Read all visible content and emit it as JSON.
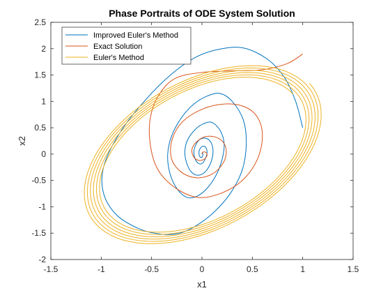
{
  "chart_data": {
    "type": "line",
    "title": "Phase Portraits of ODE System Solution",
    "xlabel": "x1",
    "ylabel": "x2",
    "xlim": [
      -1.5,
      1.5
    ],
    "ylim": [
      -2,
      2.5
    ],
    "xticks": [
      -1.5,
      -1,
      -0.5,
      0,
      0.5,
      1,
      1.5
    ],
    "yticks": [
      -2,
      -1.5,
      -1,
      -0.5,
      0,
      0.5,
      1,
      1.5,
      2,
      2.5
    ],
    "xtick_labels": [
      "-1.5",
      "-1",
      "-0.5",
      "0",
      "0.5",
      "1",
      "1.5"
    ],
    "ytick_labels": [
      "-2",
      "-1.5",
      "-1",
      "-0.5",
      "0",
      "0.5",
      "1",
      "1.5",
      "2",
      "2.5"
    ],
    "grid": false,
    "legend_position": "top-left",
    "series": [
      {
        "name": "Improved Euler's Method",
        "color": "#0072BD",
        "points": [
          [
            1.0,
            0.5
          ],
          [
            0.93,
            1.0
          ],
          [
            0.82,
            1.45
          ],
          [
            0.65,
            1.8
          ],
          [
            0.42,
            2.01
          ],
          [
            0.2,
            2.0
          ],
          [
            -0.05,
            1.85
          ],
          [
            -0.3,
            1.52
          ],
          [
            -0.55,
            1.05
          ],
          [
            -0.8,
            0.45
          ],
          [
            -0.97,
            -0.2
          ],
          [
            -0.98,
            -0.72
          ],
          [
            -0.85,
            -1.15
          ],
          [
            -0.62,
            -1.42
          ],
          [
            -0.4,
            -1.52
          ],
          [
            -0.22,
            -1.5
          ],
          [
            -0.05,
            -1.35
          ],
          [
            0.12,
            -1.1
          ],
          [
            0.28,
            -0.75
          ],
          [
            0.4,
            -0.3
          ],
          [
            0.44,
            0.2
          ],
          [
            0.41,
            0.65
          ],
          [
            0.3,
            1.0
          ],
          [
            0.18,
            1.15
          ],
          [
            0.05,
            1.1
          ],
          [
            -0.08,
            0.95
          ],
          [
            -0.2,
            0.7
          ],
          [
            -0.3,
            0.35
          ],
          [
            -0.34,
            0.0
          ],
          [
            -0.32,
            -0.35
          ],
          [
            -0.25,
            -0.65
          ],
          [
            -0.15,
            -0.82
          ],
          [
            -0.05,
            -0.8
          ],
          [
            0.05,
            -0.65
          ],
          [
            0.14,
            -0.4
          ],
          [
            0.2,
            -0.1
          ],
          [
            0.22,
            0.2
          ],
          [
            0.18,
            0.45
          ],
          [
            0.1,
            0.6
          ],
          [
            0.02,
            0.58
          ],
          [
            -0.06,
            0.48
          ],
          [
            -0.14,
            0.28
          ],
          [
            -0.17,
            0.05
          ],
          [
            -0.15,
            -0.18
          ],
          [
            -0.1,
            -0.35
          ],
          [
            -0.03,
            -0.4
          ],
          [
            0.04,
            -0.32
          ],
          [
            0.09,
            -0.15
          ],
          [
            0.11,
            0.05
          ],
          [
            0.09,
            0.22
          ],
          [
            0.04,
            0.3
          ],
          [
            -0.02,
            0.28
          ],
          [
            -0.06,
            0.18
          ],
          [
            -0.08,
            0.05
          ],
          [
            -0.07,
            -0.08
          ],
          [
            -0.04,
            -0.17
          ],
          [
            0.0,
            -0.18
          ],
          [
            0.03,
            -0.1
          ],
          [
            0.05,
            0.02
          ],
          [
            0.04,
            0.12
          ],
          [
            0.01,
            0.15
          ],
          [
            -0.02,
            0.1
          ],
          [
            -0.03,
            0.02
          ],
          [
            -0.02,
            -0.05
          ],
          [
            0.0,
            -0.06
          ],
          [
            0.01,
            0.0
          ],
          [
            0.0,
            0.03
          ]
        ]
      },
      {
        "name": "Exact Solution",
        "color": "#D95319",
        "points": [
          [
            1.0,
            1.9
          ],
          [
            0.85,
            1.72
          ],
          [
            0.6,
            1.6
          ],
          [
            0.3,
            1.58
          ],
          [
            0.0,
            1.55
          ],
          [
            -0.25,
            1.45
          ],
          [
            -0.4,
            1.2
          ],
          [
            -0.5,
            0.8
          ],
          [
            -0.52,
            0.3
          ],
          [
            -0.45,
            -0.25
          ],
          [
            -0.28,
            -0.62
          ],
          [
            -0.05,
            -0.82
          ],
          [
            0.18,
            -0.75
          ],
          [
            0.4,
            -0.5
          ],
          [
            0.55,
            -0.1
          ],
          [
            0.6,
            0.35
          ],
          [
            0.55,
            0.7
          ],
          [
            0.42,
            0.9
          ],
          [
            0.22,
            0.95
          ],
          [
            0.0,
            0.85
          ],
          [
            -0.2,
            0.6
          ],
          [
            -0.3,
            0.25
          ],
          [
            -0.3,
            -0.1
          ],
          [
            -0.2,
            -0.35
          ],
          [
            -0.05,
            -0.45
          ],
          [
            0.1,
            -0.38
          ],
          [
            0.2,
            -0.2
          ],
          [
            0.24,
            0.0
          ],
          [
            0.22,
            0.2
          ],
          [
            0.14,
            0.32
          ],
          [
            0.03,
            0.33
          ],
          [
            -0.06,
            0.22
          ],
          [
            -0.1,
            0.08
          ],
          [
            -0.08,
            -0.06
          ],
          [
            -0.03,
            -0.12
          ],
          [
            0.02,
            -0.1
          ],
          [
            0.05,
            -0.03
          ],
          [
            0.04,
            0.03
          ],
          [
            0.01,
            0.04
          ],
          [
            0.0,
            0.0
          ]
        ]
      },
      {
        "name": "Euler's Method",
        "color": "#EDB120",
        "spiral": {
          "center": [
            0.0,
            0.0
          ],
          "semi_major_start": 1.85,
          "semi_minor_start": 1.15,
          "rotation_deg": 38,
          "turns": 6,
          "ring_spacing": 0.03
        }
      }
    ]
  }
}
